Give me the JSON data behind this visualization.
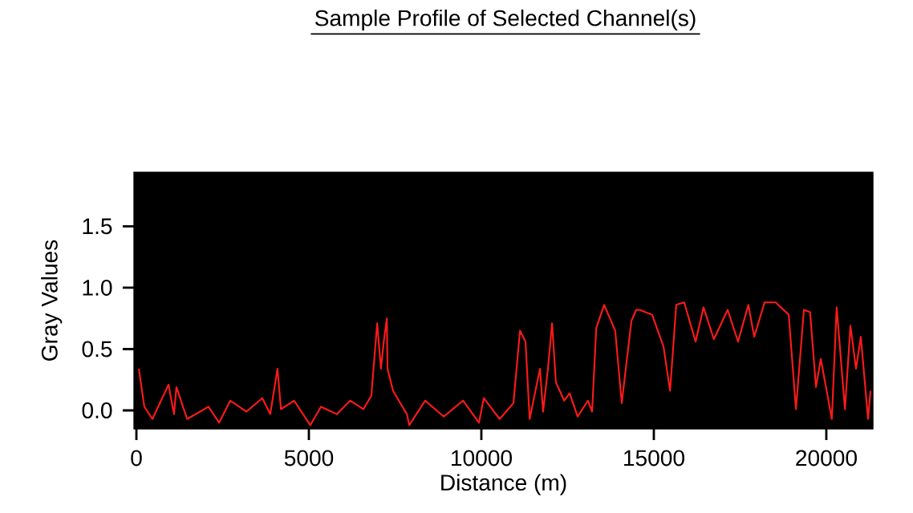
{
  "chart_data": {
    "type": "line",
    "title": "Sample Profile of Selected Channel(s)",
    "xlabel": "Distance (m)",
    "ylabel": "Gray Values",
    "xlim": [
      -70,
      21350
    ],
    "ylim": [
      -0.15,
      1.94
    ],
    "xticks": [
      0,
      5000,
      10000,
      15000,
      20000
    ],
    "yticks": [
      {
        "value": 0,
        "label": "0.0"
      },
      {
        "value": 0.5,
        "label": "0.5"
      },
      {
        "value": 1.0,
        "label": "1.0"
      },
      {
        "value": 1.5,
        "label": "1.5"
      }
    ],
    "grid": false,
    "legend": false,
    "marker": "none",
    "line_style": "solid",
    "series": [
      {
        "color": "#ff1a1a",
        "x": [
          70,
          230,
          465,
          930,
          1090,
          1160,
          1470,
          2090,
          2400,
          2720,
          3190,
          3650,
          3880,
          4090,
          4190,
          4570,
          5040,
          5350,
          5810,
          6200,
          6580,
          6810,
          6980,
          7090,
          7170,
          7260,
          7280,
          7440,
          7840,
          7910,
          8370,
          8910,
          9470,
          9930,
          10070,
          10530,
          10930,
          11120,
          11280,
          11400,
          11700,
          11790,
          11930,
          12050,
          12160,
          12400,
          12560,
          12790,
          13090,
          13210,
          13330,
          13560,
          13880,
          14070,
          14350,
          14490,
          14580,
          14950,
          15280,
          15470,
          15650,
          15880,
          16210,
          16440,
          16740,
          17140,
          17440,
          17740,
          17910,
          18210,
          18530,
          18910,
          19120,
          19350,
          19530,
          19700,
          19840,
          20160,
          20300,
          20540,
          20700,
          20860,
          21000,
          21210,
          21280
        ],
        "values": [
          0.34,
          0.03,
          -0.07,
          0.21,
          -0.03,
          0.19,
          -0.07,
          0.03,
          -0.1,
          0.08,
          -0.01,
          0.1,
          -0.03,
          0.34,
          0.01,
          0.08,
          -0.12,
          0.03,
          -0.03,
          0.08,
          0.01,
          0.12,
          0.71,
          0.34,
          0.56,
          0.75,
          0.34,
          0.16,
          -0.03,
          -0.12,
          0.08,
          -0.05,
          0.08,
          -0.1,
          0.1,
          -0.07,
          0.06,
          0.65,
          0.56,
          -0.07,
          0.34,
          -0.01,
          0.34,
          0.71,
          0.23,
          0.08,
          0.14,
          -0.05,
          0.08,
          -0.01,
          0.67,
          0.86,
          0.65,
          0.06,
          0.73,
          0.82,
          0.82,
          0.78,
          0.52,
          0.16,
          0.86,
          0.88,
          0.56,
          0.84,
          0.58,
          0.82,
          0.56,
          0.86,
          0.6,
          0.88,
          0.88,
          0.78,
          0.01,
          0.82,
          0.8,
          0.19,
          0.42,
          -0.07,
          0.84,
          0.01,
          0.69,
          0.34,
          0.6,
          -0.07,
          0.16
        ]
      }
    ]
  }
}
